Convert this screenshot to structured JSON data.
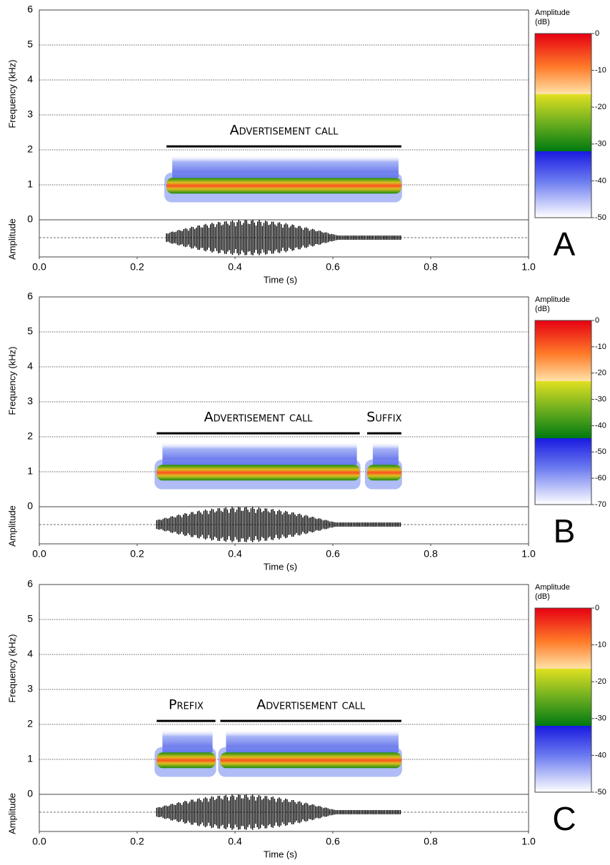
{
  "chart_data": [
    {
      "type": "spectrogram",
      "panel_label": "A",
      "ylabel": "Frequency (kHz)",
      "wave_label": "Amplitude",
      "xlabel": "Time (s)",
      "xlim": [
        0,
        1
      ],
      "xticks": [
        {
          "value": 0,
          "label": "0.0"
        },
        0.2,
        0.4,
        0.6,
        0.8,
        {
          "value": 1,
          "label": "1.0"
        }
      ],
      "ylim": [
        0,
        6
      ],
      "yticks": [
        0,
        1,
        2,
        3,
        4,
        5,
        6
      ],
      "grid": true,
      "colorbar_title": [
        "Amplitude",
        "(dB)"
      ],
      "colorbar_lim": [
        -50,
        0
      ],
      "colorbar_ticks": [
        0,
        -10,
        -20,
        -30,
        -40,
        -50
      ],
      "annotations": [
        {
          "label": "Advertisement call",
          "start": 0.26,
          "end": 0.74,
          "y": 2.1
        }
      ]
    },
    {
      "type": "spectrogram",
      "panel_label": "B",
      "ylabel": "Frequency (kHz)",
      "wave_label": "Amplitude",
      "xlabel": "Time (s)",
      "xlim": [
        0,
        1
      ],
      "xticks": [
        {
          "value": 0,
          "label": "0.0"
        },
        0.2,
        0.4,
        0.6,
        0.8,
        {
          "value": 1,
          "label": "1.0"
        }
      ],
      "ylim": [
        0,
        6
      ],
      "yticks": [
        0,
        1,
        2,
        3,
        4,
        5,
        6
      ],
      "grid": true,
      "colorbar_title": [
        "Amplitude",
        "(dB)"
      ],
      "colorbar_lim": [
        -70,
        0
      ],
      "colorbar_ticks": [
        0,
        -10,
        -20,
        -30,
        -40,
        -50,
        -60,
        -70
      ],
      "annotations": [
        {
          "label": "Advertisement call",
          "start": 0.24,
          "end": 0.655,
          "y": 2.1
        },
        {
          "label": "Suffix",
          "start": 0.67,
          "end": 0.74,
          "y": 2.1
        }
      ]
    },
    {
      "type": "spectrogram",
      "panel_label": "C",
      "ylabel": "Frequency (kHz)",
      "wave_label": "Amplitude",
      "xlabel": "Time (s)",
      "xlim": [
        0,
        1
      ],
      "xticks": [
        {
          "value": 0,
          "label": "0.0"
        },
        0.2,
        0.4,
        0.6,
        0.8,
        {
          "value": 1,
          "label": "1.0"
        }
      ],
      "ylim": [
        0,
        6
      ],
      "yticks": [
        0,
        1,
        2,
        3,
        4,
        5,
        6
      ],
      "grid": true,
      "colorbar_title": [
        "Amplitude",
        "(dB)"
      ],
      "colorbar_lim": [
        -50,
        0
      ],
      "colorbar_ticks": [
        0,
        -10,
        -20,
        -30,
        -40,
        -50
      ],
      "annotations": [
        {
          "label": "Prefix",
          "start": 0.24,
          "end": 0.36,
          "y": 2.1
        },
        {
          "label": "Advertisement call",
          "start": 0.37,
          "end": 0.74,
          "y": 2.1
        }
      ]
    }
  ]
}
